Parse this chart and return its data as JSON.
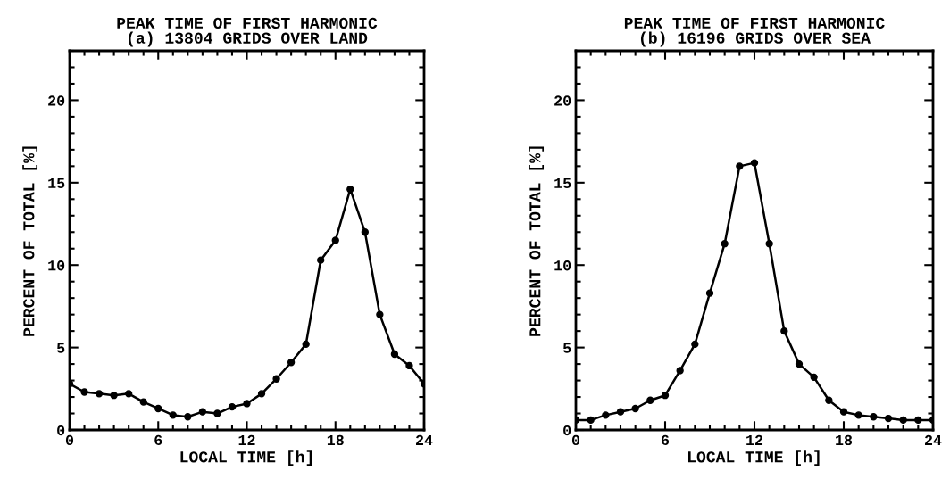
{
  "chart_data": [
    {
      "type": "line",
      "title": "PEAK TIME OF FIRST HARMONIC\n(a) 13804 GRIDS OVER LAND",
      "xlabel": "LOCAL TIME [h]",
      "ylabel": "PERCENT OF TOTAL [%]",
      "x": [
        0,
        1,
        2,
        3,
        4,
        5,
        6,
        7,
        8,
        9,
        10,
        11,
        12,
        13,
        14,
        15,
        16,
        17,
        18,
        19,
        20,
        21,
        22,
        23,
        24
      ],
      "series": [
        {
          "color": "#000000",
          "values": [
            2.8,
            2.3,
            2.2,
            2.1,
            2.2,
            1.7,
            1.3,
            0.9,
            0.8,
            1.1,
            1.0,
            1.4,
            1.6,
            2.2,
            3.1,
            4.1,
            5.2,
            10.3,
            11.5,
            14.6,
            12.0,
            7.0,
            4.6,
            3.9,
            2.8
          ]
        }
      ],
      "xlim": [
        0,
        24
      ],
      "xticks": [
        0,
        6,
        12,
        18,
        24
      ],
      "ylim": [
        0,
        23
      ],
      "yticks": [
        0,
        5,
        10,
        15,
        20
      ],
      "marker": "circle",
      "line_style": "solid",
      "grid": false,
      "legend": false
    },
    {
      "type": "line",
      "title": "PEAK TIME OF FIRST HARMONIC\n(b) 16196 GRIDS OVER SEA",
      "xlabel": "LOCAL TIME [h]",
      "ylabel": "PERCENT OF TOTAL [%]",
      "x": [
        0,
        1,
        2,
        3,
        4,
        5,
        6,
        7,
        8,
        9,
        10,
        11,
        12,
        13,
        14,
        15,
        16,
        17,
        18,
        19,
        20,
        21,
        22,
        23,
        24
      ],
      "series": [
        {
          "color": "#000000",
          "values": [
            0.6,
            0.6,
            0.9,
            1.1,
            1.3,
            1.8,
            2.1,
            3.6,
            5.2,
            8.3,
            11.3,
            16.0,
            16.2,
            11.3,
            6.0,
            4.0,
            3.2,
            1.8,
            1.1,
            0.9,
            0.8,
            0.7,
            0.6,
            0.6,
            0.6
          ]
        }
      ],
      "xlim": [
        0,
        24
      ],
      "xticks": [
        0,
        6,
        12,
        18,
        24
      ],
      "ylim": [
        0,
        23
      ],
      "yticks": [
        0,
        5,
        10,
        15,
        20
      ],
      "marker": "circle",
      "line_style": "solid",
      "grid": false,
      "legend": false
    }
  ]
}
